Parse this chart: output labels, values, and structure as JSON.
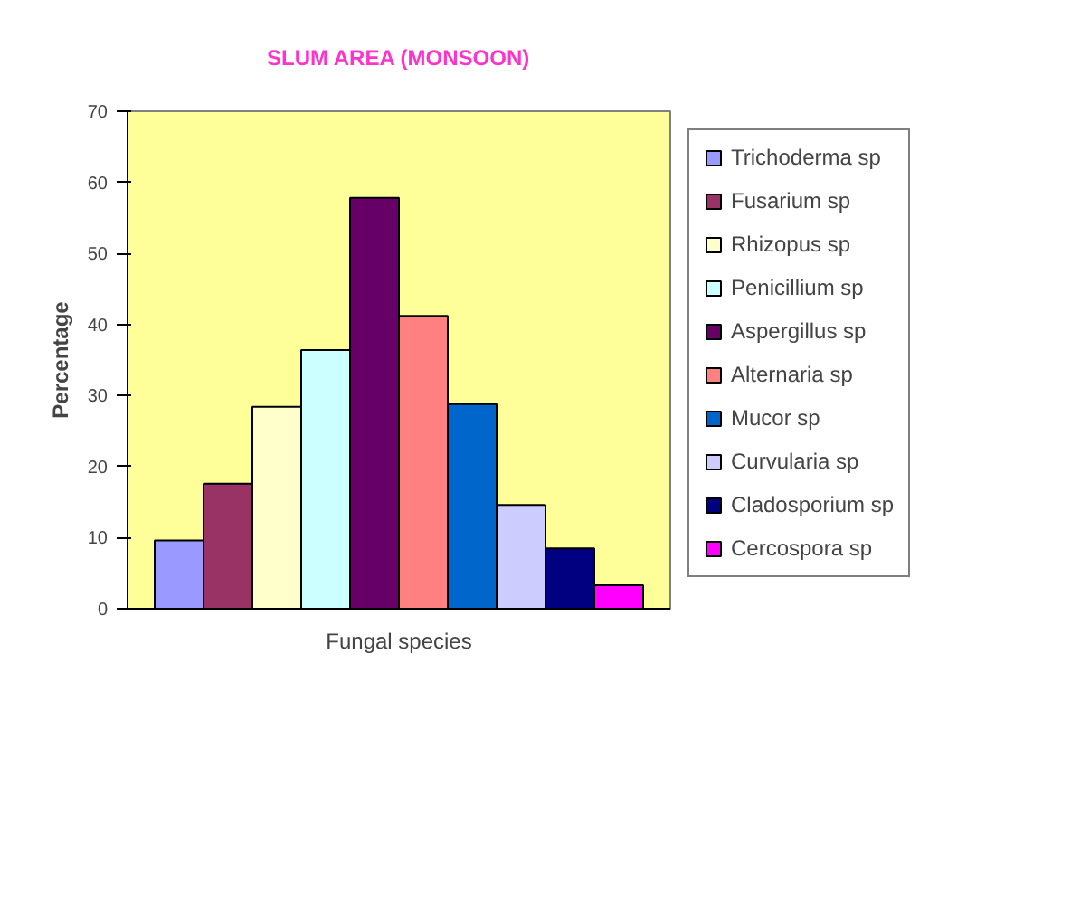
{
  "chart_data": {
    "type": "bar",
    "title": "SLUM AREA (MONSOON)",
    "xlabel": "Fungal species",
    "ylabel": "Percentage",
    "categories": [
      null
    ],
    "series": [
      {
        "name": "Trichoderma sp",
        "color": "#9999ff",
        "values": [
          9.6
        ]
      },
      {
        "name": "Fusarium sp",
        "color": "#993366",
        "values": [
          17.6
        ]
      },
      {
        "name": "Rhizopus sp",
        "color": "#ffffcc",
        "values": [
          28.4
        ]
      },
      {
        "name": "Penicillium sp",
        "color": "#ccffff",
        "values": [
          36.4
        ]
      },
      {
        "name": "Aspergillus sp",
        "color": "#660066",
        "values": [
          57.8
        ]
      },
      {
        "name": "Alternaria sp",
        "color": "#ff8080",
        "values": [
          41.2
        ]
      },
      {
        "name": "Mucor sp",
        "color": "#0066cc",
        "values": [
          28.8
        ]
      },
      {
        "name": "Curvularia sp",
        "color": "#ccccff",
        "values": [
          14.6
        ]
      },
      {
        "name": "Cladosporium sp",
        "color": "#000080",
        "values": [
          8.5
        ]
      },
      {
        "name": "Cercospora sp",
        "color": "#ff00ff",
        "values": [
          3.3
        ]
      }
    ],
    "ylim": [
      0,
      70
    ],
    "yticks": [
      0,
      10,
      20,
      30,
      40,
      50,
      60,
      70
    ],
    "grid": false,
    "legend": "right",
    "tick_labels": "y"
  }
}
